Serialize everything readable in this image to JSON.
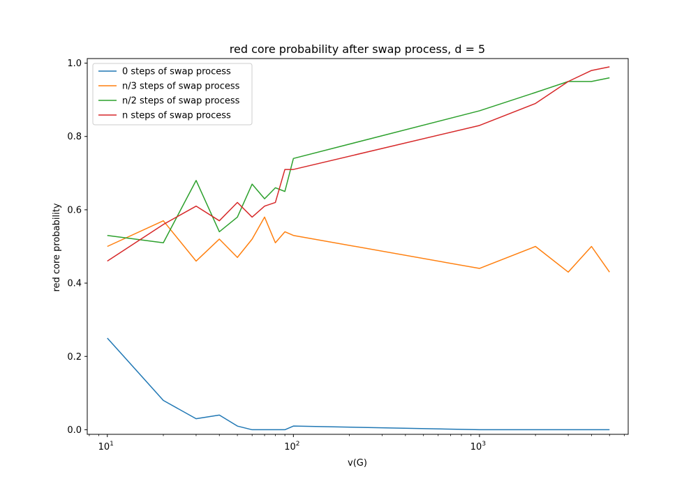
{
  "chart_data": {
    "type": "line",
    "title": "red core probability after swap process, d = 5",
    "xlabel": "v(G)",
    "ylabel": "red core probability",
    "xscale": "log",
    "xlim": [
      7.8,
      6300
    ],
    "ylim": [
      -0.0125,
      1.0125
    ],
    "x_ticks": [
      {
        "value": 10,
        "base": "10",
        "exp": "1"
      },
      {
        "value": 100,
        "base": "10",
        "exp": "2"
      },
      {
        "value": 1000,
        "base": "10",
        "exp": "3"
      }
    ],
    "y_ticks": [
      "0.0",
      "0.2",
      "0.4",
      "0.6",
      "0.8",
      "1.0"
    ],
    "grid": false,
    "legend_position": "top-left",
    "series": [
      {
        "name": "0 steps of swap process",
        "color": "#1f77b4",
        "x": [
          10,
          20,
          30,
          40,
          50,
          60,
          70,
          80,
          90,
          100,
          1000,
          2000,
          3000,
          4000,
          5000
        ],
        "y": [
          0.25,
          0.08,
          0.03,
          0.04,
          0.01,
          0.0,
          0.0,
          0.0,
          0.0,
          0.01,
          0.0,
          0.0,
          0.0,
          0.0,
          0.0
        ]
      },
      {
        "name": "n/3 steps of swap process",
        "color": "#ff7f0e",
        "x": [
          10,
          20,
          30,
          40,
          50,
          60,
          70,
          80,
          90,
          100,
          1000,
          2000,
          3000,
          4000,
          5000
        ],
        "y": [
          0.5,
          0.57,
          0.46,
          0.52,
          0.47,
          0.52,
          0.58,
          0.51,
          0.54,
          0.53,
          0.44,
          0.5,
          0.43,
          0.5,
          0.43
        ]
      },
      {
        "name": "n/2 steps of swap process",
        "color": "#2ca02c",
        "x": [
          10,
          20,
          30,
          40,
          50,
          60,
          70,
          80,
          90,
          100,
          1000,
          2000,
          3000,
          4000,
          5000
        ],
        "y": [
          0.53,
          0.51,
          0.68,
          0.54,
          0.58,
          0.67,
          0.63,
          0.66,
          0.65,
          0.74,
          0.87,
          0.92,
          0.95,
          0.95,
          0.96
        ]
      },
      {
        "name": "n steps of swap process",
        "color": "#d62728",
        "x": [
          10,
          20,
          30,
          40,
          50,
          60,
          70,
          80,
          90,
          100,
          1000,
          2000,
          3000,
          4000,
          5000
        ],
        "y": [
          0.46,
          0.56,
          0.61,
          0.57,
          0.62,
          0.58,
          0.61,
          0.62,
          0.71,
          0.71,
          0.83,
          0.89,
          0.95,
          0.98,
          0.99
        ]
      }
    ]
  }
}
